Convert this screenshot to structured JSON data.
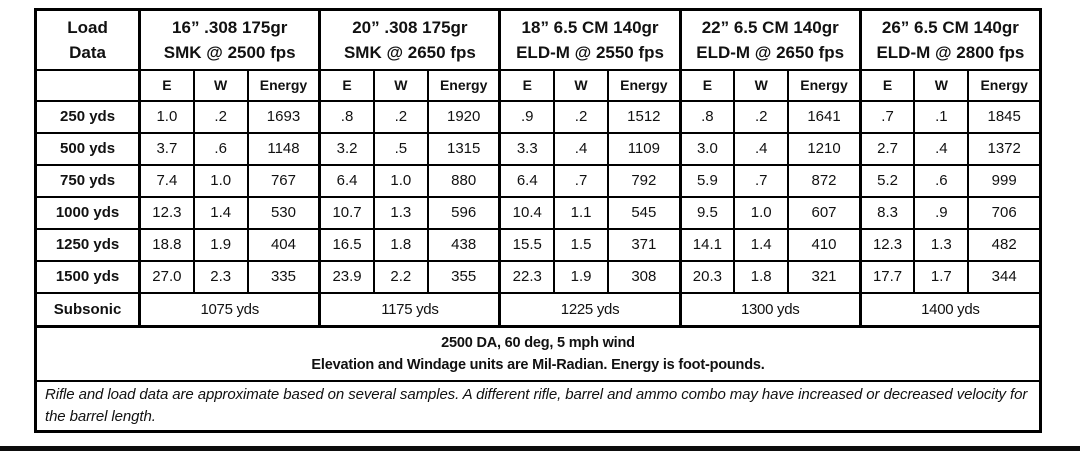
{
  "table": {
    "corner_line1": "Load",
    "corner_line2": "Data",
    "groups": [
      {
        "line1": "16” .308 175gr",
        "line2": "SMK @ 2500 fps"
      },
      {
        "line1": "20” .308 175gr",
        "line2": "SMK @ 2650 fps"
      },
      {
        "line1": "18” 6.5 CM 140gr",
        "line2": "ELD-M @ 2550 fps"
      },
      {
        "line1": "22” 6.5 CM 140gr",
        "line2": "ELD-M @ 2650 fps"
      },
      {
        "line1": "26” 6.5 CM 140gr",
        "line2": "ELD-M @ 2800 fps"
      }
    ],
    "sub_headers": [
      "E",
      "W",
      "Energy"
    ],
    "rows": [
      {
        "label": "250 yds",
        "values": [
          "1.0",
          ".2",
          "1693",
          ".8",
          ".2",
          "1920",
          ".9",
          ".2",
          "1512",
          ".8",
          ".2",
          "1641",
          ".7",
          ".1",
          "1845"
        ]
      },
      {
        "label": "500 yds",
        "values": [
          "3.7",
          ".6",
          "1148",
          "3.2",
          ".5",
          "1315",
          "3.3",
          ".4",
          "1109",
          "3.0",
          ".4",
          "1210",
          "2.7",
          ".4",
          "1372"
        ]
      },
      {
        "label": "750 yds",
        "values": [
          "7.4",
          "1.0",
          "767",
          "6.4",
          "1.0",
          "880",
          "6.4",
          ".7",
          "792",
          "5.9",
          ".7",
          "872",
          "5.2",
          ".6",
          "999"
        ]
      },
      {
        "label": "1000 yds",
        "values": [
          "12.3",
          "1.4",
          "530",
          "10.7",
          "1.3",
          "596",
          "10.4",
          "1.1",
          "545",
          "9.5",
          "1.0",
          "607",
          "8.3",
          ".9",
          "706"
        ]
      },
      {
        "label": "1250 yds",
        "values": [
          "18.8",
          "1.9",
          "404",
          "16.5",
          "1.8",
          "438",
          "15.5",
          "1.5",
          "371",
          "14.1",
          "1.4",
          "410",
          "12.3",
          "1.3",
          "482"
        ]
      },
      {
        "label": "1500 yds",
        "values": [
          "27.0",
          "2.3",
          "335",
          "23.9",
          "2.2",
          "355",
          "22.3",
          "1.9",
          "308",
          "20.3",
          "1.8",
          "321",
          "17.7",
          "1.7",
          "344"
        ]
      }
    ],
    "subsonic": {
      "label": "Subsonic",
      "values": [
        "1075 yds",
        "1175 yds",
        "1225 yds",
        "1300 yds",
        "1400 yds"
      ]
    },
    "footnote_line1": "2500 DA, 60 deg, 5 mph wind",
    "footnote_line2": "Elevation and Windage units are Mil-Radian. Energy is foot-pounds.",
    "disclaimer": "Rifle and load data are approximate based on several samples. A different rifle, barrel and ammo combo may have increased or decreased velocity for the barrel length."
  },
  "colors": {
    "border": "#000000",
    "background": "#ffffff",
    "text": "#111111"
  }
}
